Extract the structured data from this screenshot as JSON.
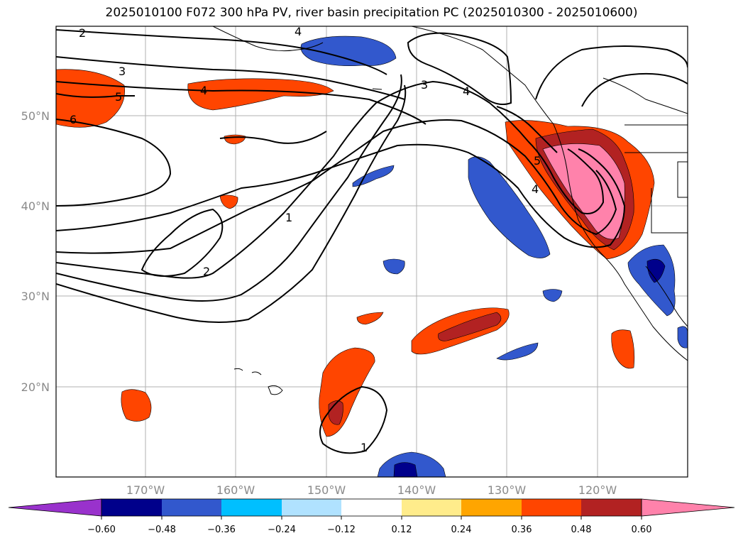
{
  "title": "2025010100 F072 300 hPa PV, river basin precipitation PC (2025010300 - 2025010600)",
  "map": {
    "lat_labels": [
      "50°N",
      "40°N",
      "30°N",
      "20°N"
    ],
    "lon_labels": [
      "170°W",
      "160°W",
      "150°W",
      "140°W",
      "130°W",
      "120°W"
    ],
    "contour_labels": [
      "2",
      "3",
      "4",
      "5",
      "6",
      "4",
      "1",
      "2",
      "3",
      "4",
      "4",
      "5",
      "1"
    ]
  },
  "colorbar": {
    "ticks": [
      "−0.60",
      "−0.48",
      "−0.36",
      "−0.24",
      "−0.12",
      "0.12",
      "0.24",
      "0.36",
      "0.48",
      "0.60"
    ],
    "colors": [
      "#9932cc",
      "#00008b",
      "#3258cd",
      "#00bfff",
      "#b0e2ff",
      "#ffffff",
      "#ffec8b",
      "#ffa500",
      "#ff4500",
      "#b22222",
      "#ff82ab"
    ]
  },
  "colors": {
    "grid": "#b0b0b0",
    "contour": "#000000",
    "tick_label": "#8a8a8a"
  }
}
